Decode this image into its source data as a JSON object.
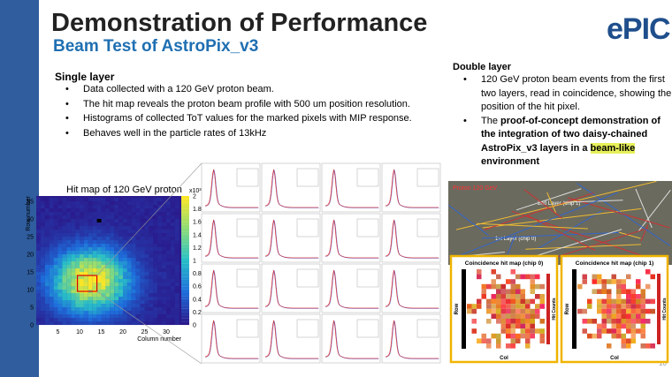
{
  "header": {
    "title": "Demonstration of Performance",
    "subtitle": "Beam Test of AstroPix_v3",
    "logo": "ePIC",
    "page": "10"
  },
  "single": {
    "heading": "Single layer",
    "bullets": [
      "Data collected with a 120 GeV proton beam.",
      "The hit map reveals the proton beam profile with 500 um position resolution.",
      "Histograms of collected ToT values for the marked pixels with MIP response.",
      "Behaves well in the particle rates of 13kHz"
    ]
  },
  "double": {
    "heading": "Double layer",
    "bullet1": "120 GeV proton beam events from the first two layers, read in coincidence, showing the position of the hit pixel.",
    "bullet2": {
      "plain": "The ",
      "bold": "proof-of-concept demonstration of the integration of two daisy-chained AstroPix_v3 layers in a",
      "highlight": "beam-like",
      "tail": "environment"
    }
  },
  "hitmap": {
    "title": "Hit map of 120 GeV proton",
    "xlabel": "Column number",
    "ylabel": "Row number",
    "xticks": [
      5,
      10,
      15,
      20,
      25,
      30
    ],
    "yticks": [
      0,
      5,
      10,
      15,
      20,
      25,
      30,
      35
    ],
    "cticks": [
      0,
      0.2,
      0.4,
      0.6,
      0.8,
      1,
      1.2,
      1.4,
      1.6,
      1.8,
      2
    ],
    "cbar_unit": "x10³"
  },
  "photo": {
    "label": "Proton 120 GeV",
    "layer2": "2nd Layer (chip 1)",
    "layer1": "1st Layer (chip 0)"
  },
  "coincidence": [
    {
      "title": "Coincidence hit map (chip 0)",
      "xlabel": "Col",
      "ylabel": "Row",
      "zlabel": "Hit Counts"
    },
    {
      "title": "Coincidence hit map (chip 1)",
      "xlabel": "Col",
      "ylabel": "Row",
      "zlabel": "Hit Counts"
    }
  ]
}
